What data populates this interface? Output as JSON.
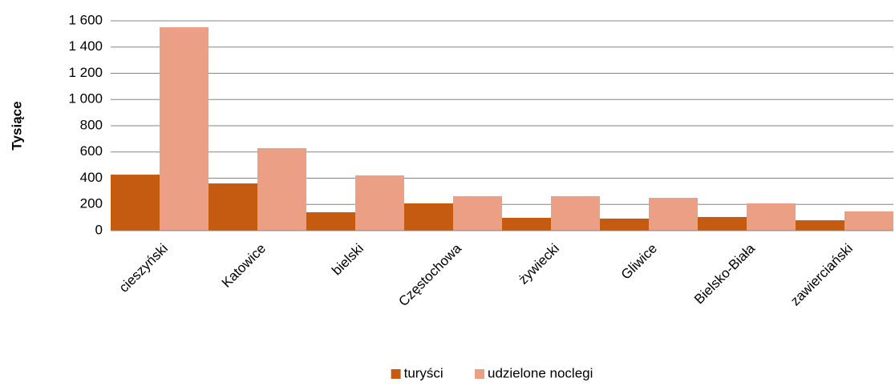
{
  "chart_data": {
    "type": "bar",
    "y_label": "Tysiące",
    "categories": [
      "cieszyński",
      "Katowice",
      "bielski",
      "Częstochowa",
      "żywiecki",
      "Gliwice",
      "Bielsko-Biała",
      "zawierciański"
    ],
    "series": [
      {
        "name": "turyści",
        "color": "#c55a11",
        "values": [
          427,
          360,
          140,
          208,
          98,
          92,
          104,
          79
        ]
      },
      {
        "name": "udzielone noclegi",
        "color": "#eba085",
        "values": [
          1551,
          629,
          421,
          263,
          263,
          250,
          208,
          147
        ]
      }
    ],
    "ylim": [
      0,
      1600
    ],
    "yticks": [
      0,
      200,
      400,
      600,
      800,
      {
        "value": 1000,
        "label": "1 000"
      },
      {
        "value": 1200,
        "label": "1 200"
      },
      {
        "value": 1400,
        "label": "1 400"
      },
      {
        "value": 1600,
        "label": "1 600"
      }
    ],
    "grid": true,
    "legend": "bottom"
  }
}
